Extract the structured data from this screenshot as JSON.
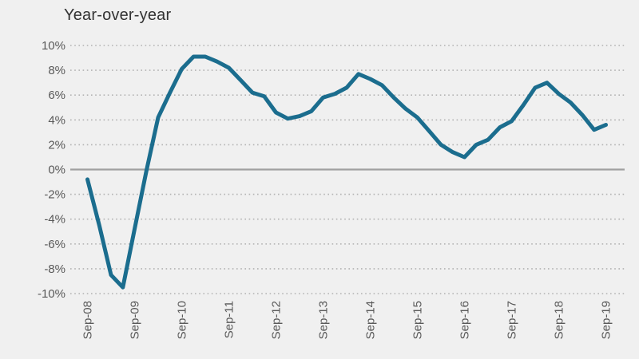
{
  "chart_data": {
    "type": "line",
    "title": "Year-over-year",
    "unit": "%",
    "x": [
      "Sep-08",
      "Dec-08",
      "Mar-09",
      "Jun-09",
      "Sep-09",
      "Dec-09",
      "Mar-10",
      "Jun-10",
      "Sep-10",
      "Dec-10",
      "Mar-11",
      "Jun-11",
      "Sep-11",
      "Dec-11",
      "Mar-12",
      "Jun-12",
      "Sep-12",
      "Dec-12",
      "Mar-13",
      "Jun-13",
      "Sep-13",
      "Dec-13",
      "Mar-14",
      "Jun-14",
      "Sep-14",
      "Dec-14",
      "Mar-15",
      "Jun-15",
      "Sep-15",
      "Dec-15",
      "Mar-16",
      "Jun-16",
      "Sep-16",
      "Dec-16",
      "Mar-17",
      "Jun-17",
      "Sep-17",
      "Dec-17",
      "Mar-18",
      "Jun-18",
      "Sep-18",
      "Dec-18",
      "Mar-19",
      "Jun-19",
      "Sep-19"
    ],
    "values": [
      -0.8,
      -4.5,
      -8.5,
      -9.5,
      -4.8,
      -0.1,
      4.2,
      6.2,
      8.1,
      9.1,
      9.1,
      8.7,
      8.2,
      7.2,
      6.2,
      5.9,
      4.6,
      4.1,
      4.3,
      4.7,
      5.8,
      6.1,
      6.6,
      7.7,
      7.3,
      6.8,
      5.8,
      4.9,
      4.2,
      3.1,
      2.0,
      1.4,
      1.0,
      2.0,
      2.4,
      3.4,
      3.9,
      5.2,
      6.6,
      7.0,
      6.1,
      5.4,
      4.4,
      3.2,
      3.6
    ],
    "x_tick_labels": [
      "Sep-08",
      "Sep-09",
      "Sep-10",
      "Sep-11",
      "Sep-12",
      "Sep-13",
      "Sep-14",
      "Sep-15",
      "Sep-16",
      "Sep-17",
      "Sep-18",
      "Sep-19"
    ],
    "x_tick_every": 4,
    "y_ticks": [
      10,
      8,
      6,
      4,
      2,
      0,
      -2,
      -4,
      -6,
      -8,
      -10
    ],
    "y_tick_labels": [
      "10%",
      "8%",
      "6%",
      "4%",
      "2%",
      "0%",
      "-2%",
      "-4%",
      "-6%",
      "-8%",
      "-10%"
    ],
    "ylim": [
      -10,
      10
    ],
    "grid": "dotted-horizontal",
    "zero_line": true,
    "legend": "none",
    "colors": {
      "line": "#1b6d8e",
      "background": "#f0f0f0",
      "title_text": "#333333",
      "axis_text": "#595959",
      "gridline": "#b3b3b3",
      "zero_line": "#a0a0a0"
    }
  }
}
